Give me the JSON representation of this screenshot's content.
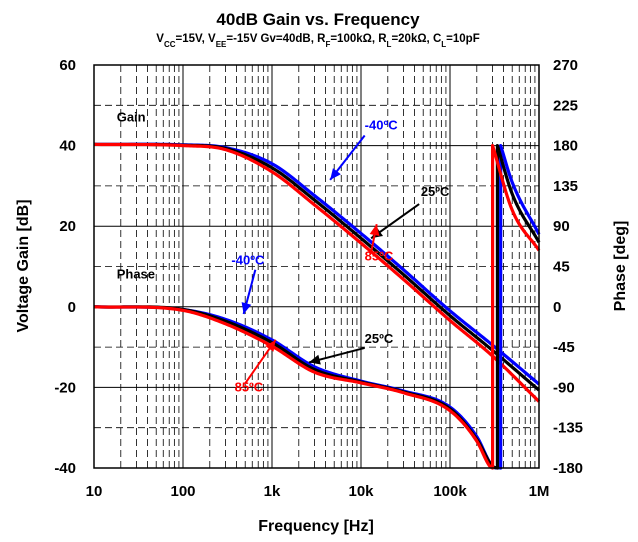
{
  "chart_data": {
    "type": "line",
    "title": "40dB Gain vs. Frequency",
    "subtitle": {
      "parts": [
        {
          "t": "V"
        },
        {
          "t": "CC",
          "sub": true
        },
        {
          "t": "=15V, V"
        },
        {
          "t": "EE",
          "sub": true
        },
        {
          "t": "=-15V Gv=40dB, R"
        },
        {
          "t": "F",
          "sub": true
        },
        {
          "t": "=100kΩ, R"
        },
        {
          "t": "L",
          "sub": true
        },
        {
          "t": "=20kΩ, C"
        },
        {
          "t": "L",
          "sub": true
        },
        {
          "t": "=10pF"
        }
      ]
    },
    "xlabel": "Frequency [Hz]",
    "ylabel": "Voltage Gain [dB]",
    "y2label": "Phase [deg]",
    "xscale": "log",
    "xlim": [
      10,
      1000000
    ],
    "ylim": [
      -40,
      60
    ],
    "y2lim": [
      -180,
      270
    ],
    "grid": true,
    "x_ticks": [
      {
        "v": 10,
        "label": "10"
      },
      {
        "v": 100,
        "label": "100"
      },
      {
        "v": 1000,
        "label": "1k"
      },
      {
        "v": 10000,
        "label": "10k"
      },
      {
        "v": 100000,
        "label": "100k"
      },
      {
        "v": 1000000,
        "label": "1M"
      }
    ],
    "y_ticks": [
      {
        "v": 60,
        "label": "60"
      },
      {
        "v": 40,
        "label": "40"
      },
      {
        "v": 20,
        "label": "20"
      },
      {
        "v": 0,
        "label": "0"
      },
      {
        "v": -20,
        "label": "-20"
      },
      {
        "v": -40,
        "label": "-40"
      }
    ],
    "y2_ticks": [
      {
        "v": 270,
        "label": "270"
      },
      {
        "v": 225,
        "label": "225"
      },
      {
        "v": 180,
        "label": "180"
      },
      {
        "v": 135,
        "label": "135"
      },
      {
        "v": 90,
        "label": "90"
      },
      {
        "v": 45,
        "label": "45"
      },
      {
        "v": 0,
        "label": "0"
      },
      {
        "v": -45,
        "label": "-45"
      },
      {
        "v": -90,
        "label": "-90"
      },
      {
        "v": -135,
        "label": "-135"
      },
      {
        "v": -180,
        "label": "-180"
      }
    ],
    "series": [
      {
        "group": "Gain",
        "temp": "-40ºC",
        "color": "#0000ff",
        "axis": "left",
        "x": [
          10,
          100,
          300,
          1000,
          3000,
          10000,
          30000,
          100000,
          300000,
          1000000
        ],
        "y": [
          40.3,
          40.2,
          39.5,
          35.5,
          27.6,
          18.2,
          9.2,
          -1.0,
          -9.5,
          -19.2
        ]
      },
      {
        "group": "Gain",
        "temp": "25ºC",
        "color": "#000000",
        "axis": "left",
        "x": [
          10,
          100,
          300,
          1000,
          3000,
          10000,
          30000,
          100000,
          300000,
          1000000
        ],
        "y": [
          40.3,
          40.1,
          39.3,
          34.5,
          26.5,
          17.0,
          8.0,
          -2.2,
          -10.8,
          -20.7
        ]
      },
      {
        "group": "Gain",
        "temp": "85ºC",
        "color": "#ff0000",
        "axis": "left",
        "x": [
          10,
          100,
          300,
          1000,
          3000,
          10000,
          30000,
          100000,
          300000,
          1000000
        ],
        "y": [
          40.3,
          40.0,
          39.0,
          33.5,
          25.3,
          15.8,
          6.8,
          -3.4,
          -12.2,
          -23.5
        ]
      },
      {
        "group": "Phase",
        "temp": "-40ºC",
        "color": "#0000ff",
        "axis": "right",
        "x": [
          10,
          100,
          300,
          1000,
          3000,
          10000,
          30000,
          100000,
          200000,
          300000,
          370000,
          371000,
          500000,
          1000000
        ],
        "y": [
          0,
          -3,
          -14,
          -37,
          -67,
          -83,
          -94,
          -112,
          -145,
          -178,
          -180,
          180,
          139,
          81
        ]
      },
      {
        "group": "Phase",
        "temp": "25ºC",
        "color": "#000000",
        "axis": "right",
        "x": [
          10,
          100,
          300,
          1000,
          3000,
          10000,
          30000,
          100000,
          200000,
          300000,
          340000,
          341000,
          500000,
          1000000
        ],
        "y": [
          0,
          -3,
          -16,
          -40,
          -70,
          -84,
          -95,
          -114,
          -148,
          -178,
          -180,
          180,
          126,
          72
        ]
      },
      {
        "group": "Phase",
        "temp": "85ºC",
        "color": "#ff0000",
        "axis": "right",
        "x": [
          10,
          100,
          300,
          1000,
          3000,
          10000,
          30000,
          100000,
          200000,
          280000,
          300000,
          301000,
          500000,
          1000000
        ],
        "y": [
          0,
          -4,
          -19,
          -44,
          -73,
          -85,
          -96,
          -116,
          -150,
          -178,
          -180,
          180,
          108,
          63
        ]
      }
    ],
    "annotations": [
      {
        "name": "gain-label",
        "text": "Gain",
        "color": "#000000",
        "x": 18,
        "y": 46
      },
      {
        "name": "phase-label",
        "text": "Phase",
        "color": "#000000",
        "x": 18,
        "y": 7
      },
      {
        "name": "gain-minus40c",
        "text": "-40ºC",
        "color": "#0000ff",
        "x": 11000,
        "y": 44
      },
      {
        "name": "gain-25c",
        "text": "25ºC",
        "color": "#000000",
        "x": 47000,
        "y": 27.5
      },
      {
        "name": "gain-85c",
        "text": "85ºC",
        "color": "#ff0000",
        "x": 11000,
        "y": 11.5
      },
      {
        "name": "phase-minus40c",
        "text": "-40ºC",
        "color": "#0000ff",
        "x": 350,
        "y": 10.5
      },
      {
        "name": "phase-25c",
        "text": "25ºC",
        "color": "#000000",
        "x": 11000,
        "y": -9
      },
      {
        "name": "phase-85c",
        "text": "85ºC",
        "color": "#ff0000",
        "x": 380,
        "y": -21
      }
    ]
  }
}
